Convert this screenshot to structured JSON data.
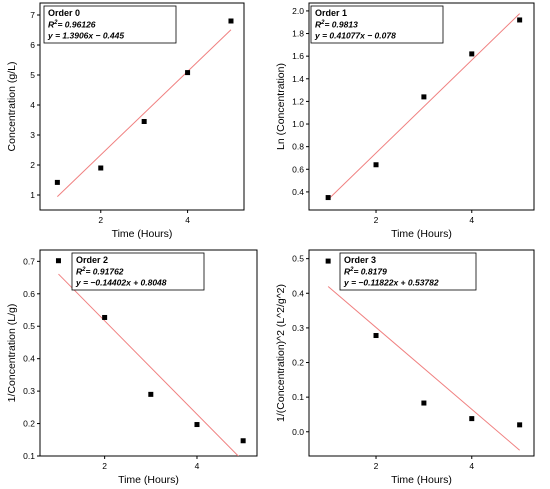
{
  "chart_data": [
    {
      "type": "scatter",
      "title": "",
      "xlabel": "Time (Hours)",
      "ylabel": "Concentration (g/L)",
      "xlim": [
        0.6,
        5.3
      ],
      "ylim": [
        0.5,
        7.4
      ],
      "xticks": [
        2,
        4
      ],
      "yticks": [
        1,
        2,
        3,
        4,
        5,
        6,
        7
      ],
      "ytick_decimals": 0,
      "grid": false,
      "legend": {
        "position": "top-left",
        "title": "Order 0",
        "r2_symbol": "R",
        "r2_sup": "2",
        "r2_value": "= 0.96126",
        "equation": "y = 1.3906x − 0.445"
      },
      "points": {
        "x": [
          1,
          2,
          3,
          4,
          5
        ],
        "y": [
          1.42,
          1.9,
          3.45,
          5.08,
          6.8
        ]
      },
      "fit": {
        "slope": 1.3906,
        "intercept": -0.445,
        "x_range": [
          1,
          5
        ]
      },
      "colors": {
        "points": "#000000",
        "fit": "#f08080"
      }
    },
    {
      "type": "scatter",
      "title": "",
      "xlabel": "Time (Hours)",
      "ylabel": "Ln (Concentration)",
      "xlim": [
        0.6,
        5.3
      ],
      "ylim": [
        0.24,
        2.07
      ],
      "xticks": [
        2,
        4
      ],
      "yticks": [
        0.4,
        0.6,
        0.8,
        1.0,
        1.2,
        1.4,
        1.6,
        1.8,
        2.0
      ],
      "ytick_decimals": 1,
      "grid": false,
      "legend": {
        "position": "top-left",
        "title": "Order 1",
        "r2_symbol": "R",
        "r2_sup": "2",
        "r2_value": "= 0.9813",
        "equation": "y = 0.41077x − 0.078"
      },
      "points": {
        "x": [
          1,
          2,
          3,
          4,
          5
        ],
        "y": [
          0.35,
          0.64,
          1.24,
          1.62,
          1.92
        ]
      },
      "fit": {
        "slope": 0.41077,
        "intercept": -0.078,
        "x_range": [
          1,
          5
        ]
      },
      "colors": {
        "points": "#000000",
        "fit": "#f08080"
      }
    },
    {
      "type": "scatter",
      "title": "",
      "xlabel": "Time (Hours)",
      "ylabel": "1/Concentration (L/g)",
      "xlim": [
        0.6,
        5.3
      ],
      "ylim": [
        0.1,
        0.735
      ],
      "xticks": [
        2,
        4
      ],
      "yticks": [
        0.1,
        0.2,
        0.3,
        0.4,
        0.5,
        0.6,
        0.7
      ],
      "ytick_decimals": 1,
      "grid": false,
      "legend": {
        "position": "top-center",
        "title": "Order 2",
        "r2_symbol": "R",
        "r2_sup": "2",
        "r2_value": "= 0.91762",
        "equation": "y = −0.14402x + 0.8048"
      },
      "points": {
        "x": [
          1,
          2,
          3,
          4,
          5
        ],
        "y": [
          0.702,
          0.527,
          0.29,
          0.197,
          0.147
        ]
      },
      "fit": {
        "slope": -0.14402,
        "intercept": 0.8048,
        "x_range": [
          1,
          5
        ]
      },
      "colors": {
        "points": "#000000",
        "fit": "#f08080"
      }
    },
    {
      "type": "scatter",
      "title": "",
      "xlabel": "Time (Hours)",
      "ylabel": "1/(Concentration)^2 (L^2/g^2)",
      "xlim": [
        0.6,
        5.3
      ],
      "ylim": [
        -0.07,
        0.525
      ],
      "xticks": [
        2,
        4
      ],
      "yticks": [
        0.0,
        0.1,
        0.2,
        0.3,
        0.4,
        0.5
      ],
      "ytick_decimals": 1,
      "grid": false,
      "legend": {
        "position": "top-center",
        "title": "Order 3",
        "r2_symbol": "R",
        "r2_sup": "2",
        "r2_value": "= 0.8179",
        "equation": "y = −0.11822x + 0.53782"
      },
      "points": {
        "x": [
          1,
          2,
          3,
          4,
          5
        ],
        "y": [
          0.493,
          0.278,
          0.083,
          0.038,
          0.02
        ]
      },
      "fit": {
        "slope": -0.11822,
        "intercept": 0.53782,
        "x_range": [
          1,
          5
        ]
      },
      "colors": {
        "points": "#000000",
        "fit": "#f08080"
      }
    }
  ]
}
